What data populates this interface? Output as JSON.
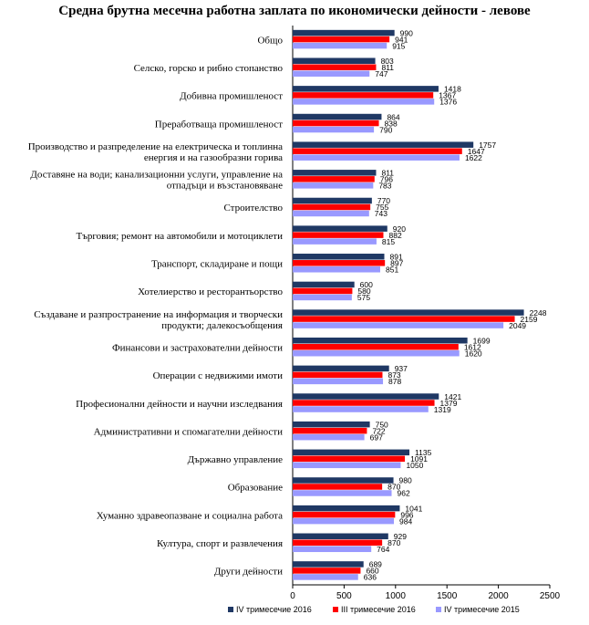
{
  "chart_data": {
    "type": "bar",
    "orientation": "horizontal",
    "title": "Средна брутна месечна работна заплата по икономически дейности - левове",
    "xlim": [
      0,
      2500
    ],
    "xticks": [
      "0",
      "500",
      "1000",
      "1500",
      "2000",
      "2500"
    ],
    "grid": false,
    "legend_position": "bottom",
    "categories": [
      [
        "Общо"
      ],
      [
        "Селско, горско и рибно стопанство"
      ],
      [
        "Добивна промишленост"
      ],
      [
        "Преработваща промишленост"
      ],
      [
        "Производство и разпределение на електрическа и топлинна",
        "енергия и на газообразни горива"
      ],
      [
        "Доставяне на води; канализационни услуги, управление на",
        "отпадъци и възстановяване"
      ],
      [
        "Строителство"
      ],
      [
        "Търговия; ремонт на автомобили и мотоциклети"
      ],
      [
        "Транспорт, складиране и пощи"
      ],
      [
        "Хотелиерство и ресторантьорство"
      ],
      [
        "Създаване и разпространение на информация и творчески",
        "продукти; далекосъобщения"
      ],
      [
        "Финансови и застрахователни дейности"
      ],
      [
        "Операции с недвижими имоти"
      ],
      [
        "Професионални дейности и научни изследвания"
      ],
      [
        "Административни и спомагателни дейности"
      ],
      [
        "Държавно управление"
      ],
      [
        "Образование"
      ],
      [
        "Хуманно здравеопазване и социална работа"
      ],
      [
        "Култура, спорт и развлечения"
      ],
      [
        "Други дейности"
      ]
    ],
    "series": [
      {
        "name": "IV тримесечие 2016",
        "color": "#1F3864",
        "values": [
          990,
          803,
          1418,
          864,
          1757,
          811,
          770,
          920,
          891,
          600,
          2248,
          1699,
          937,
          1421,
          750,
          1135,
          980,
          1041,
          929,
          689
        ]
      },
      {
        "name": "III тримесечие 2016",
        "color": "#FF0000",
        "values": [
          941,
          811,
          1367,
          838,
          1647,
          796,
          755,
          882,
          897,
          580,
          2159,
          1612,
          873,
          1379,
          722,
          1091,
          870,
          996,
          870,
          660
        ]
      },
      {
        "name": "IV тримесечие 2015",
        "color": "#9999FF",
        "values": [
          915,
          747,
          1376,
          790,
          1622,
          783,
          743,
          815,
          851,
          575,
          2049,
          1620,
          878,
          1319,
          697,
          1050,
          962,
          984,
          764,
          636
        ]
      }
    ]
  }
}
